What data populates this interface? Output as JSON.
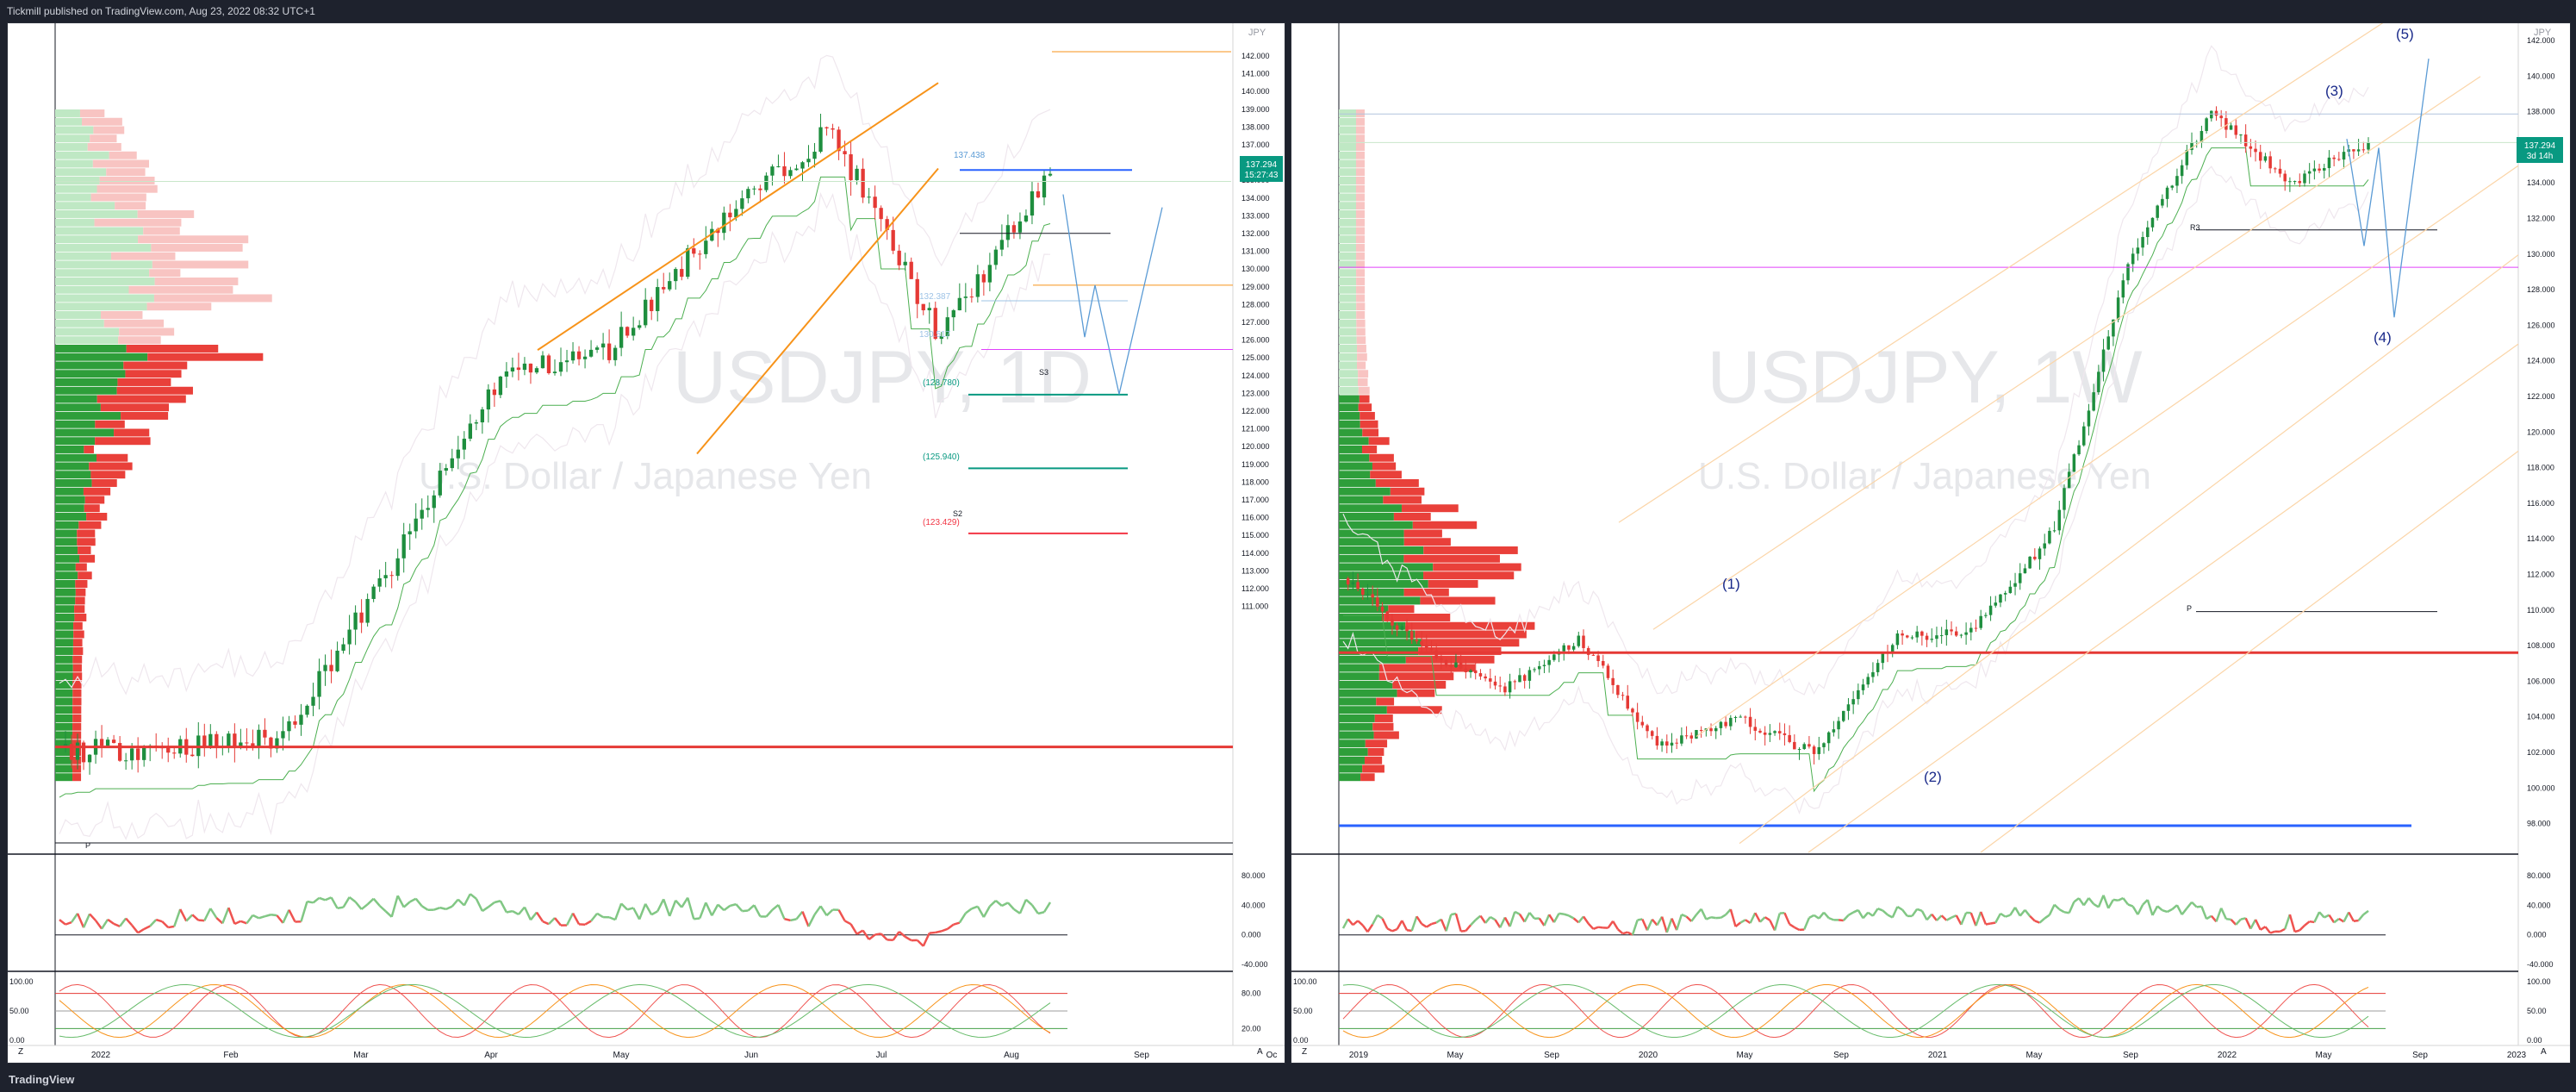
{
  "header": {
    "published": "Tickmill published on TradingView.com, Aug 23, 2022 08:32 UTC+1"
  },
  "footer": {
    "brand": "TradingView"
  },
  "charts": [
    {
      "watermark_symbol": "USDJPY, 1D",
      "watermark_name": "U.S. Dollar / Japanese Yen",
      "currency": "JPY",
      "price_badge": "137.294",
      "countdown": "15:27:43",
      "price_ticks": [
        "142.000",
        "141.000",
        "140.000",
        "139.000",
        "138.000",
        "137.000",
        "136.000",
        "135.000",
        "134.000",
        "133.000",
        "132.000",
        "131.000",
        "130.000",
        "129.000",
        "128.000",
        "127.000",
        "126.000",
        "125.000",
        "124.000",
        "123.000",
        "122.000",
        "121.000",
        "120.000",
        "119.000",
        "118.000",
        "117.000",
        "116.000",
        "115.000",
        "114.000",
        "113.000",
        "112.000",
        "111.000"
      ],
      "level_labels": [
        "137.438",
        "132.387",
        "130.517",
        "(128.780)",
        "(125.940)",
        "(123.429)"
      ],
      "pivot_labels": [
        "S3",
        "S2",
        "P"
      ],
      "time_ticks": [
        "2022",
        "Feb",
        "Mar",
        "Apr",
        "May",
        "Jun",
        "Jul",
        "Aug",
        "Sep",
        "Oc"
      ],
      "osc1_ticks": [
        "80.000",
        "40.000",
        "0.000",
        "-40.000"
      ],
      "osc2_ticks": [
        "100.00",
        "50.00",
        "0.00"
      ],
      "osc2_right_ticks": [
        "80.00",
        "20.00"
      ],
      "corner_left": "Z",
      "corner_right": "A"
    },
    {
      "watermark_symbol": "USDJPY, 1W",
      "watermark_name": "U.S. Dollar / Japanese Yen",
      "currency": "JPY",
      "price_badge": "137.294",
      "countdown": "3d 14h",
      "price_ticks": [
        "142.000",
        "140.000",
        "138.000",
        "136.000",
        "134.000",
        "132.000",
        "130.000",
        "128.000",
        "126.000",
        "124.000",
        "122.000",
        "120.000",
        "118.000",
        "116.000",
        "114.000",
        "112.000",
        "110.000",
        "108.000",
        "106.000",
        "104.000",
        "102.000",
        "100.000",
        "98.000"
      ],
      "wave_labels": [
        "(1)",
        "(2)",
        "(3)",
        "(4)",
        "(5)"
      ],
      "pivot_labels": [
        "R3",
        "P"
      ],
      "time_ticks": [
        "2019",
        "May",
        "Sep",
        "2020",
        "May",
        "Sep",
        "2021",
        "May",
        "Sep",
        "2022",
        "May",
        "Sep",
        "2023"
      ],
      "osc1_ticks": [
        "80.000",
        "40.000",
        "0.000",
        "-40.000"
      ],
      "osc2_ticks": [
        "100.00",
        "50.00",
        "0.00"
      ],
      "osc2_right_ticks": [
        "100.00",
        "50.00",
        "0.00"
      ],
      "corner_left": "Z",
      "corner_right": "A"
    }
  ],
  "colors": {
    "up": "#089981",
    "down": "#f23645",
    "bar_green": "#2e9e3a",
    "bar_red": "#e9403a",
    "orange": "#f7931a",
    "blue": "#2962ff",
    "magenta": "#e040fb"
  },
  "chart_data": [
    {
      "type": "candlestick",
      "title": "USDJPY, 1D",
      "ylim": [
        111,
        142.5
      ],
      "x": [
        "2022",
        "Feb",
        "Mar",
        "Apr",
        "May",
        "Jun",
        "Jul",
        "Aug",
        "Sep",
        "Oc"
      ],
      "last_price": 137.294,
      "levels": [
        137.438,
        132.387,
        130.517,
        128.78,
        125.94,
        123.429
      ],
      "path_anchors": [
        {
          "label": "Jan",
          "price": 115.0
        },
        {
          "label": "Feb",
          "price": 115.2
        },
        {
          "label": "Mar",
          "price": 115.5
        },
        {
          "label": "Apr",
          "price": 122.0
        },
        {
          "label": "May",
          "price": 129.5
        },
        {
          "label": "Jun",
          "price": 130.5
        },
        {
          "label": "Jul",
          "price": 135.5
        },
        {
          "label": "Jul-end",
          "price": 139.0
        },
        {
          "label": "Aug",
          "price": 131.0
        },
        {
          "label": "Aug-end",
          "price": 137.3
        }
      ]
    },
    {
      "type": "candlestick",
      "title": "USDJPY, 1W",
      "ylim": [
        97.5,
        143.5
      ],
      "x": [
        "2019",
        "May",
        "Sep",
        "2020",
        "May",
        "Sep",
        "2021",
        "May",
        "Sep",
        "2022",
        "May",
        "Sep",
        "2023"
      ],
      "last_price": 137.294,
      "path_anchors": [
        {
          "label": "2018-end",
          "price": 113.0
        },
        {
          "label": "2019",
          "price": 109.0
        },
        {
          "label": "2019-Sep",
          "price": 106.5
        },
        {
          "label": "2020",
          "price": 109.5
        },
        {
          "label": "2020-Mar",
          "price": 103.5
        },
        {
          "label": "2020-Sep",
          "price": 105.0
        },
        {
          "label": "2021",
          "price": 103.0
        },
        {
          "label": "2021-May",
          "price": 109.5
        },
        {
          "label": "2021-Sep",
          "price": 110.0
        },
        {
          "label": "2022",
          "price": 115.5
        },
        {
          "label": "2022-May",
          "price": 131.0
        },
        {
          "label": "2022-Jul",
          "price": 139.0
        },
        {
          "label": "2022-Aug",
          "price": 135.0
        },
        {
          "label": "2022-Aug-end",
          "price": 137.3
        }
      ]
    }
  ]
}
